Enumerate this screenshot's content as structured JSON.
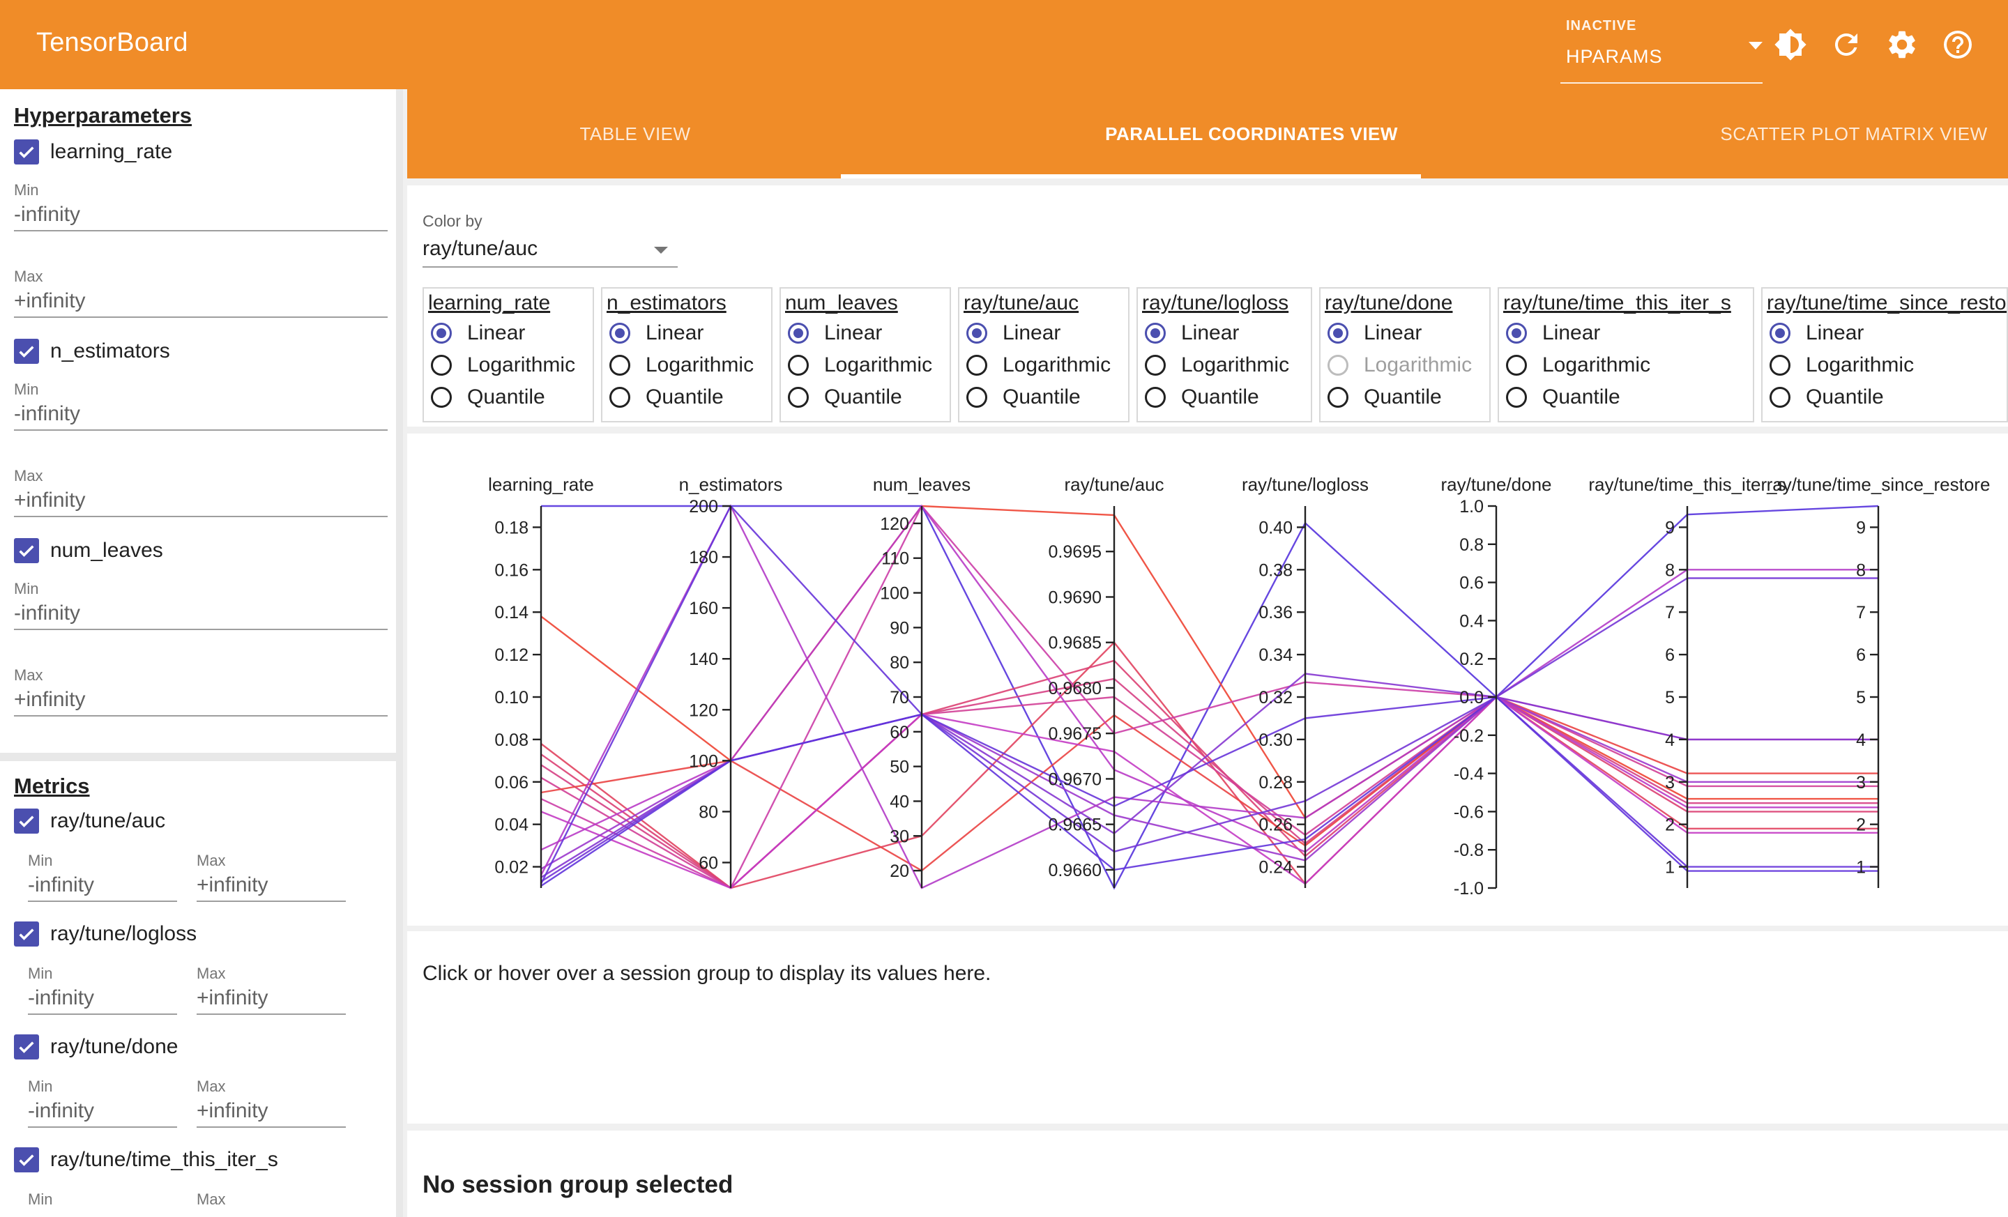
{
  "app": {
    "title": "TensorBoard"
  },
  "plugin_selector": {
    "status": "INACTIVE",
    "value": "HPARAMS"
  },
  "toolbar": {
    "icons": [
      "brightness-icon",
      "refresh-icon",
      "settings-icon",
      "help-icon"
    ]
  },
  "sidebar": {
    "hyperparameters": {
      "title": "Hyperparameters",
      "items": [
        {
          "name": "learning_rate",
          "checked": true,
          "min_label": "Min",
          "min": "-infinity",
          "max_label": "Max",
          "max": "+infinity"
        },
        {
          "name": "n_estimators",
          "checked": true,
          "min_label": "Min",
          "min": "-infinity",
          "max_label": "Max",
          "max": "+infinity"
        },
        {
          "name": "num_leaves",
          "checked": true,
          "min_label": "Min",
          "min": "-infinity",
          "max_label": "Max",
          "max": "+infinity"
        }
      ]
    },
    "metrics": {
      "title": "Metrics",
      "items": [
        {
          "name": "ray/tune/auc",
          "checked": true,
          "min_label": "Min",
          "min": "-infinity",
          "max_label": "Max",
          "max": "+infinity"
        },
        {
          "name": "ray/tune/logloss",
          "checked": true,
          "min_label": "Min",
          "min": "-infinity",
          "max_label": "Max",
          "max": "+infinity"
        },
        {
          "name": "ray/tune/done",
          "checked": true,
          "min_label": "Min",
          "min": "-infinity",
          "max_label": "Max",
          "max": "+infinity"
        },
        {
          "name": "ray/tune/time_this_iter_s",
          "checked": true,
          "min_label": "Min",
          "max_label": "Max"
        }
      ]
    }
  },
  "tabs": [
    {
      "label": "TABLE VIEW",
      "active": false
    },
    {
      "label": "PARALLEL COORDINATES VIEW",
      "active": true
    },
    {
      "label": "SCATTER PLOT MATRIX VIEW",
      "active": false
    }
  ],
  "color_by": {
    "label": "Color by",
    "value": "ray/tune/auc"
  },
  "scales": [
    {
      "column": "learning_rate",
      "options": [
        "Linear",
        "Logarithmic",
        "Quantile"
      ],
      "selected": "Linear"
    },
    {
      "column": "n_estimators",
      "options": [
        "Linear",
        "Logarithmic",
        "Quantile"
      ],
      "selected": "Linear"
    },
    {
      "column": "num_leaves",
      "options": [
        "Linear",
        "Logarithmic",
        "Quantile"
      ],
      "selected": "Linear"
    },
    {
      "column": "ray/tune/auc",
      "options": [
        "Linear",
        "Logarithmic",
        "Quantile"
      ],
      "selected": "Linear"
    },
    {
      "column": "ray/tune/logloss",
      "options": [
        "Linear",
        "Logarithmic",
        "Quantile"
      ],
      "selected": "Linear"
    },
    {
      "column": "ray/tune/done",
      "options": [
        "Linear",
        "Logarithmic",
        "Quantile"
      ],
      "selected": "Linear",
      "disabled": [
        "Logarithmic"
      ]
    },
    {
      "column": "ray/tune/time_this_iter_s",
      "options": [
        "Linear",
        "Logarithmic",
        "Quantile"
      ],
      "selected": "Linear"
    },
    {
      "column": "ray/tune/time_since_restore",
      "options": [
        "Linear",
        "Logarithmic",
        "Quantile"
      ],
      "selected": "Linear"
    }
  ],
  "chart_data": {
    "type": "parallel-coordinates",
    "color_by": "ray/tune/auc",
    "colors": {
      "low": "#5533dd",
      "mid": "#c43cc4",
      "high": "#ee4433"
    },
    "axes": [
      {
        "name": "learning_rate",
        "range": [
          0.01,
          0.19
        ],
        "ticks": [
          0.18,
          0.16,
          0.14,
          0.12,
          0.1,
          0.08,
          0.06,
          0.04,
          0.02
        ],
        "tick_labels": [
          "0.18",
          "0.16",
          "0.14",
          "0.12",
          "0.10",
          "0.08",
          "0.06",
          "0.04",
          "0.02"
        ]
      },
      {
        "name": "n_estimators",
        "range": [
          50,
          200
        ],
        "ticks": [
          200,
          180,
          160,
          140,
          120,
          100,
          80,
          60
        ],
        "tick_labels": [
          "200",
          "180",
          "160",
          "140",
          "120",
          "100",
          "80",
          "60"
        ]
      },
      {
        "name": "num_leaves",
        "range": [
          15,
          125
        ],
        "ticks": [
          120,
          110,
          100,
          90,
          80,
          70,
          60,
          50,
          40,
          30,
          20
        ],
        "tick_labels": [
          "120",
          "110",
          "100",
          "90",
          "80",
          "70",
          "60",
          "50",
          "40",
          "30",
          "20"
        ]
      },
      {
        "name": "ray/tune/auc",
        "range": [
          0.9658,
          0.97
        ],
        "ticks": [
          0.9695,
          0.969,
          0.9685,
          0.968,
          0.9675,
          0.967,
          0.9665,
          0.966
        ],
        "tick_labels": [
          "0.9695",
          "0.9690",
          "0.9685",
          "0.9680",
          "0.9675",
          "0.9670",
          "0.9665",
          "0.9660"
        ]
      },
      {
        "name": "ray/tune/logloss",
        "range": [
          0.23,
          0.41
        ],
        "ticks": [
          0.4,
          0.38,
          0.36,
          0.34,
          0.32,
          0.3,
          0.28,
          0.26,
          0.24
        ],
        "tick_labels": [
          "0.40",
          "0.38",
          "0.36",
          "0.34",
          "0.32",
          "0.30",
          "0.28",
          "0.26",
          "0.24"
        ]
      },
      {
        "name": "ray/tune/done",
        "range": [
          -1.0,
          1.0
        ],
        "ticks": [
          1.0,
          0.8,
          0.6,
          0.4,
          0.2,
          0.0,
          -0.2,
          -0.4,
          -0.6,
          -0.8,
          -1.0
        ],
        "tick_labels": [
          "1.0",
          "0.8",
          "0.6",
          "0.4",
          "0.2",
          "0.0",
          "-0.2",
          "-0.4",
          "-0.6",
          "-0.8",
          "-1.0"
        ]
      },
      {
        "name": "ray/tune/time_this_iter_s",
        "range": [
          0.5,
          9.5
        ],
        "ticks": [
          9,
          8,
          7,
          6,
          5,
          4,
          3,
          2,
          1
        ],
        "tick_labels": [
          "9",
          "8",
          "7",
          "6",
          "5",
          "4",
          "3",
          "2",
          "1"
        ]
      },
      {
        "name": "ray/tune/time_since_restore",
        "range": [
          0.5,
          9.5
        ],
        "ticks": [
          9,
          8,
          7,
          6,
          5,
          4,
          3,
          2,
          1
        ],
        "tick_labels": [
          "9",
          "8",
          "7",
          "6",
          "5",
          "4",
          "3",
          "2",
          "1"
        ]
      }
    ],
    "sessions": [
      {
        "values": [
          0.19,
          200,
          125,
          0.9658,
          0.402,
          0.0,
          9.3,
          9.5
        ],
        "t": 0.0
      },
      {
        "values": [
          0.138,
          100,
          125,
          0.9699,
          0.263,
          0.0,
          2.6,
          2.6
        ],
        "t": 1.0
      },
      {
        "values": [
          0.078,
          50,
          30,
          0.9685,
          0.232,
          0.0,
          1.9,
          1.9
        ],
        "t": 0.85
      },
      {
        "values": [
          0.073,
          50,
          65,
          0.9683,
          0.245,
          0.0,
          2.3,
          2.3
        ],
        "t": 0.78
      },
      {
        "values": [
          0.068,
          50,
          65,
          0.9681,
          0.251,
          0.0,
          2.5,
          2.5
        ],
        "t": 0.72
      },
      {
        "values": [
          0.062,
          50,
          65,
          0.9679,
          0.255,
          0.0,
          2.9,
          2.9
        ],
        "t": 0.66
      },
      {
        "values": [
          0.055,
          100,
          20,
          0.9677,
          0.25,
          0.0,
          3.2,
          3.2
        ],
        "t": 0.95
      },
      {
        "values": [
          0.052,
          50,
          125,
          0.9675,
          0.327,
          0.0,
          4.0,
          4.0
        ],
        "t": 0.6
      },
      {
        "values": [
          0.046,
          50,
          65,
          0.9673,
          0.232,
          0.0,
          1.8,
          1.8
        ],
        "t": 0.5
      },
      {
        "values": [
          0.028,
          100,
          125,
          0.9671,
          0.247,
          0.0,
          2.4,
          2.4
        ],
        "t": 0.45
      },
      {
        "values": [
          0.019,
          100,
          65,
          0.9666,
          0.243,
          0.0,
          3.0,
          3.0
        ],
        "t": 0.32
      },
      {
        "values": [
          0.016,
          200,
          15,
          0.9668,
          0.263,
          0.0,
          8.0,
          8.0
        ],
        "t": 0.42
      },
      {
        "values": [
          0.015,
          100,
          65,
          0.9664,
          0.331,
          0.0,
          4.0,
          4.0
        ],
        "t": 0.22
      },
      {
        "values": [
          0.013,
          100,
          65,
          0.9662,
          0.271,
          0.0,
          7.8,
          7.8
        ],
        "t": 0.14
      },
      {
        "values": [
          0.012,
          200,
          65,
          0.9667,
          0.31,
          0.0,
          1.0,
          1.0
        ],
        "t": 0.08
      },
      {
        "values": [
          0.011,
          100,
          65,
          0.966,
          0.253,
          0.0,
          0.9,
          0.9
        ],
        "t": 0.05
      }
    ]
  },
  "session_hint": "Click or hover over a session group to display its values here.",
  "selection": {
    "empty_title": "No session group selected"
  }
}
